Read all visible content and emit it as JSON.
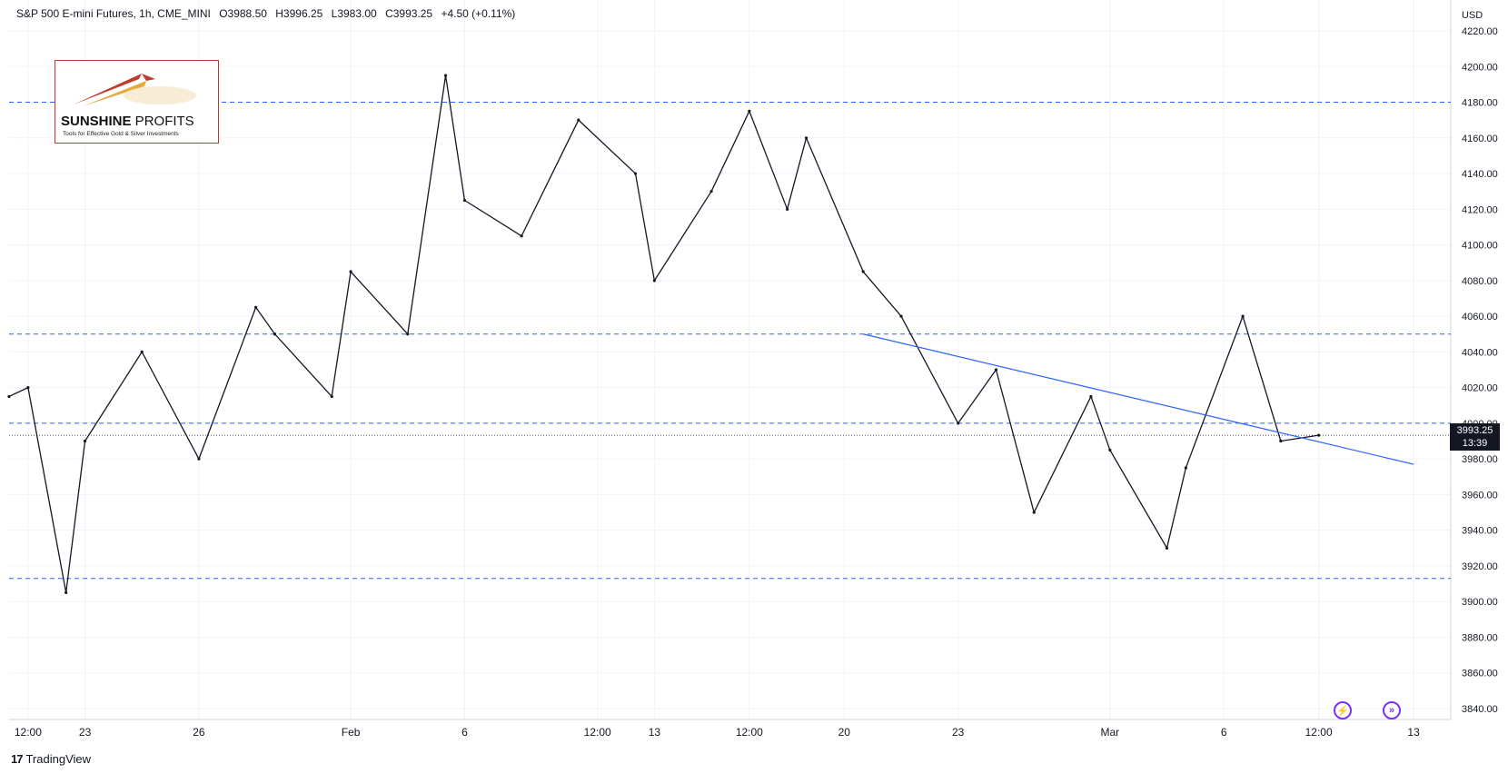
{
  "header": {
    "symbol": "S&P 500 E-mini Futures, 1h, CME_MINI",
    "open": "O3988.50",
    "high": "H3996.25",
    "low": "L3983.00",
    "close": "C3993.25",
    "change": "+4.50 (+0.11%)"
  },
  "price_tag": {
    "price": "3993.25",
    "countdown": "13:39"
  },
  "watermark": {
    "name_bold": "SUNSHINE",
    "name_thin": " PROFITS",
    "tagline": "Tools for Effective Gold & Silver Investments"
  },
  "footer": {
    "brand": "TradingView"
  },
  "colors": {
    "candles": "#131722",
    "level_lines": "#2962ff",
    "trendline": "#2962ff",
    "background": "#ffffff",
    "grid": "#f0f3fa"
  },
  "icons": [
    "lightning-icon",
    "forward-icon"
  ],
  "chart_data": {
    "type": "line",
    "title": "S&P 500 E-mini Futures, 1h, CME_MINI",
    "currency_label": "USD",
    "ylim": [
      3840,
      4220
    ],
    "y_ticks": [
      "4220.00",
      "4200.00",
      "4180.00",
      "4160.00",
      "4140.00",
      "4120.00",
      "4100.00",
      "4080.00",
      "4060.00",
      "4040.00",
      "4020.00",
      "4000.00",
      "3980.00",
      "3960.00",
      "3940.00",
      "3920.00",
      "3900.00",
      "3880.00",
      "3860.00",
      "3840.00"
    ],
    "x_ticks": [
      "12:00",
      "23",
      "26",
      "Feb",
      "6",
      "12:00",
      "13",
      "12:00",
      "20",
      "23",
      "Mar",
      "6",
      "12:00",
      "13"
    ],
    "grid": true,
    "series": [
      {
        "name": "S&P 500 E-mini Futures",
        "x": [
          "Jan 19 00:00",
          "Jan 19 12:00",
          "Jan 20 12:00",
          "Jan 23 00:00",
          "Jan 24 12:00",
          "Jan 26 00:00",
          "Jan 27 12:00",
          "Jan 30 00:00",
          "Jan 31 12:00",
          "Feb 1 00:00",
          "Feb 2 12:00",
          "Feb 3 12:00",
          "Feb 6 00:00",
          "Feb 7 12:00",
          "Feb 9 00:00",
          "Feb 10 12:00",
          "Feb 13 00:00",
          "Feb 14 12:00",
          "Feb 15 12:00",
          "Feb 16 12:00",
          "Feb 17 00:00",
          "Feb 20 12:00",
          "Feb 21 12:00",
          "Feb 23 00:00",
          "Feb 24 00:00",
          "Feb 27 00:00",
          "Feb 28 12:00",
          "Mar 1 00:00",
          "Mar 2 12:00",
          "Mar 3 00:00",
          "Mar 6 12:00",
          "Mar 7 12:00",
          "Mar 8 12:00"
        ],
        "values": [
          4015,
          4020,
          3905,
          3990,
          4040,
          3980,
          4065,
          4050,
          4015,
          4085,
          4050,
          4195,
          4125,
          4105,
          4170,
          4140,
          4080,
          4130,
          4175,
          4120,
          4160,
          4085,
          4060,
          4000,
          4030,
          3950,
          4015,
          3985,
          3930,
          3975,
          4060,
          3990,
          3993.25
        ]
      }
    ],
    "level_lines": [
      4180,
      4050,
      4000,
      3913
    ],
    "trendline": {
      "from": [
        "Feb 20 12:00",
        4050
      ],
      "to": [
        "Mar 13 00:00",
        3977
      ]
    },
    "last_price": 3993.25
  }
}
